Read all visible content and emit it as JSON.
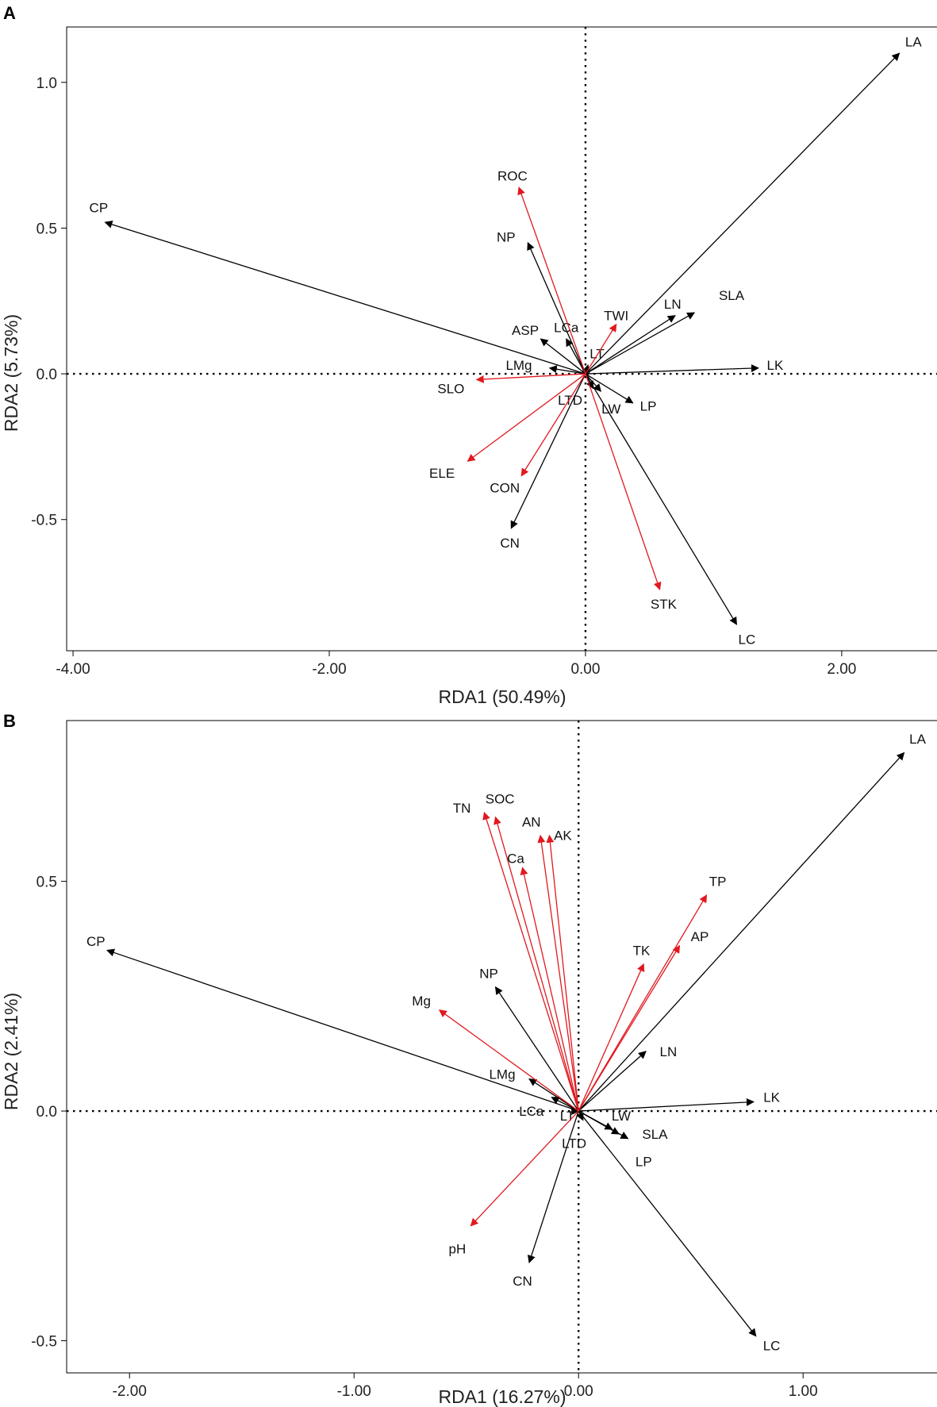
{
  "colors": {
    "response": "#000000",
    "explanatory": "#e0191f",
    "frame": "#000000"
  },
  "chart_data": [
    {
      "type": "scatter",
      "subtype": "rda-biplot",
      "panel_label": "A",
      "xlabel": "RDA1 (50.49%)",
      "ylabel": "RDA2 (5.73%)",
      "xlim": [
        -4.05,
        2.75
      ],
      "ylim": [
        -0.95,
        1.19
      ],
      "xticks": [
        -4,
        -2,
        0,
        2
      ],
      "xtick_labels": [
        "-4.00",
        "-2.00",
        "0.00",
        "2.00"
      ],
      "yticks": [
        -0.5,
        0,
        0.5,
        1
      ],
      "ytick_labels": [
        "-0.5",
        "0.0",
        "0.5",
        "1.0"
      ],
      "reference_lines": "dotted at x=0 and y=0",
      "vectors": [
        {
          "label": "LA",
          "x": 2.45,
          "y": 1.1,
          "group": "response",
          "lx": 2.56,
          "ly": 1.14
        },
        {
          "label": "CP",
          "x": -3.75,
          "y": 0.52,
          "group": "response",
          "lx": -3.8,
          "ly": 0.57
        },
        {
          "label": "NP",
          "x": -0.45,
          "y": 0.45,
          "group": "response",
          "lx": -0.62,
          "ly": 0.47
        },
        {
          "label": "LN",
          "x": 0.7,
          "y": 0.2,
          "group": "response",
          "lx": 0.68,
          "ly": 0.24
        },
        {
          "label": "SLA",
          "x": 0.85,
          "y": 0.21,
          "group": "response",
          "lx": 1.14,
          "ly": 0.27
        },
        {
          "label": "LK",
          "x": 1.35,
          "y": 0.02,
          "group": "response",
          "lx": 1.48,
          "ly": 0.03
        },
        {
          "label": "ASP",
          "x": -0.35,
          "y": 0.12,
          "group": "response",
          "lx": -0.47,
          "ly": 0.15
        },
        {
          "label": "LCa",
          "x": -0.15,
          "y": 0.12,
          "group": "response",
          "lx": -0.15,
          "ly": 0.16
        },
        {
          "label": "LT",
          "x": 0.02,
          "y": 0.03,
          "group": "response",
          "lx": 0.09,
          "ly": 0.07
        },
        {
          "label": "LMg",
          "x": -0.28,
          "y": 0.02,
          "group": "response",
          "lx": -0.52,
          "ly": 0.03
        },
        {
          "label": "LTD",
          "x": 0.06,
          "y": -0.05,
          "group": "response",
          "lx": -0.12,
          "ly": -0.09
        },
        {
          "label": "LW",
          "x": 0.12,
          "y": -0.06,
          "group": "response",
          "lx": 0.2,
          "ly": -0.12
        },
        {
          "label": "LP",
          "x": 0.37,
          "y": -0.1,
          "group": "response",
          "lx": 0.49,
          "ly": -0.11
        },
        {
          "label": "CN",
          "x": -0.58,
          "y": -0.53,
          "group": "response",
          "lx": -0.59,
          "ly": -0.58
        },
        {
          "label": "LC",
          "x": 1.18,
          "y": -0.86,
          "group": "response",
          "lx": 1.26,
          "ly": -0.91
        },
        {
          "label": "ROC",
          "x": -0.52,
          "y": 0.64,
          "group": "explanatory",
          "lx": -0.57,
          "ly": 0.68
        },
        {
          "label": "TWI",
          "x": 0.24,
          "y": 0.17,
          "group": "explanatory",
          "lx": 0.24,
          "ly": 0.2
        },
        {
          "label": "SLO",
          "x": -0.85,
          "y": -0.02,
          "group": "explanatory",
          "lx": -1.05,
          "ly": -0.05
        },
        {
          "label": "ELE",
          "x": -0.92,
          "y": -0.3,
          "group": "explanatory",
          "lx": -1.12,
          "ly": -0.34
        },
        {
          "label": "CON",
          "x": -0.5,
          "y": -0.35,
          "group": "explanatory",
          "lx": -0.63,
          "ly": -0.39
        },
        {
          "label": "STK",
          "x": 0.58,
          "y": -0.74,
          "group": "explanatory",
          "lx": 0.61,
          "ly": -0.79
        }
      ]
    },
    {
      "type": "scatter",
      "subtype": "rda-biplot",
      "panel_label": "B",
      "xlabel": "RDA1 (16.27%)",
      "ylabel": "RDA2 (2.41%)",
      "xlim": [
        -2.28,
        1.6
      ],
      "ylim": [
        -0.57,
        0.85
      ],
      "xticks": [
        -2,
        -1,
        0,
        1
      ],
      "xtick_labels": [
        "-2.00",
        "-1.00",
        "0.00",
        "1.00"
      ],
      "yticks": [
        -0.5,
        0,
        0.5
      ],
      "ytick_labels": [
        "-0.5",
        "0.0",
        "0.5"
      ],
      "reference_lines": "dotted at x=0 and y=0",
      "vectors": [
        {
          "label": "LA",
          "x": 1.45,
          "y": 0.78,
          "group": "response",
          "lx": 1.51,
          "ly": 0.81
        },
        {
          "label": "CP",
          "x": -2.1,
          "y": 0.35,
          "group": "response",
          "lx": -2.15,
          "ly": 0.37
        },
        {
          "label": "NP",
          "x": -0.37,
          "y": 0.27,
          "group": "response",
          "lx": -0.4,
          "ly": 0.3
        },
        {
          "label": "LN",
          "x": 0.3,
          "y": 0.13,
          "group": "response",
          "lx": 0.4,
          "ly": 0.13
        },
        {
          "label": "LK",
          "x": 0.78,
          "y": 0.02,
          "group": "response",
          "lx": 0.86,
          "ly": 0.03
        },
        {
          "label": "LMg",
          "x": -0.22,
          "y": 0.07,
          "group": "response",
          "lx": -0.34,
          "ly": 0.08
        },
        {
          "label": "LCa",
          "x": -0.12,
          "y": 0.03,
          "group": "response",
          "lx": -0.21,
          "ly": 0.0
        },
        {
          "label": "LT",
          "x": 0.0,
          "y": 0.0,
          "group": "response",
          "lx": -0.05,
          "ly": -0.01
        },
        {
          "label": "LTD",
          "x": 0.02,
          "y": -0.02,
          "group": "response",
          "lx": -0.02,
          "ly": -0.07
        },
        {
          "label": "LW",
          "x": 0.15,
          "y": -0.04,
          "group": "response",
          "lx": 0.19,
          "ly": -0.01
        },
        {
          "label": "SLA",
          "x": 0.22,
          "y": -0.06,
          "group": "response",
          "lx": 0.34,
          "ly": -0.05
        },
        {
          "label": "LP",
          "x": 0.18,
          "y": -0.05,
          "group": "response",
          "lx": 0.29,
          "ly": -0.11
        },
        {
          "label": "CN",
          "x": -0.22,
          "y": -0.33,
          "group": "response",
          "lx": -0.25,
          "ly": -0.37
        },
        {
          "label": "LC",
          "x": 0.79,
          "y": -0.49,
          "group": "response",
          "lx": 0.86,
          "ly": -0.51
        },
        {
          "label": "TN",
          "x": -0.42,
          "y": 0.65,
          "group": "explanatory",
          "lx": -0.52,
          "ly": 0.66
        },
        {
          "label": "SOC",
          "x": -0.37,
          "y": 0.64,
          "group": "explanatory",
          "lx": -0.35,
          "ly": 0.68
        },
        {
          "label": "AN",
          "x": -0.17,
          "y": 0.6,
          "group": "explanatory",
          "lx": -0.21,
          "ly": 0.63
        },
        {
          "label": "AK",
          "x": -0.13,
          "y": 0.6,
          "group": "explanatory",
          "lx": -0.07,
          "ly": 0.6
        },
        {
          "label": "Ca",
          "x": -0.25,
          "y": 0.53,
          "group": "explanatory",
          "lx": -0.28,
          "ly": 0.55
        },
        {
          "label": "TP",
          "x": 0.57,
          "y": 0.47,
          "group": "explanatory",
          "lx": 0.62,
          "ly": 0.5
        },
        {
          "label": "AP",
          "x": 0.45,
          "y": 0.36,
          "group": "explanatory",
          "lx": 0.54,
          "ly": 0.38
        },
        {
          "label": "TK",
          "x": 0.29,
          "y": 0.32,
          "group": "explanatory",
          "lx": 0.28,
          "ly": 0.35
        },
        {
          "label": "Mg",
          "x": -0.62,
          "y": 0.22,
          "group": "explanatory",
          "lx": -0.7,
          "ly": 0.24
        },
        {
          "label": "pH",
          "x": -0.48,
          "y": -0.25,
          "group": "explanatory",
          "lx": -0.54,
          "ly": -0.3
        }
      ]
    }
  ]
}
